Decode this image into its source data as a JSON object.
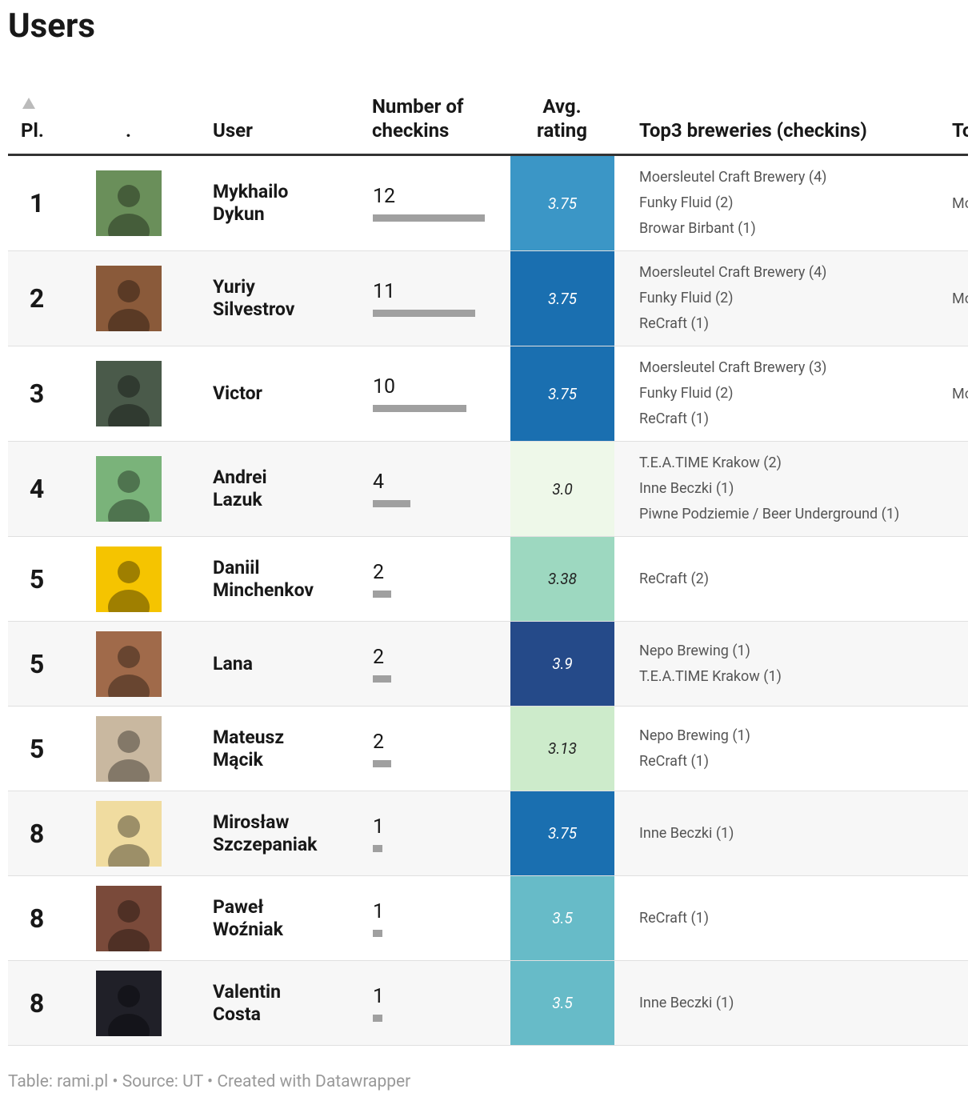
{
  "title": "Users",
  "table": {
    "columns": [
      "Pl.",
      ".",
      "User",
      "Number of checkins",
      "Avg. rating",
      "Top3 breweries (checkins)",
      "To"
    ],
    "bar_color": "#a0a0a0",
    "rows": [
      {
        "place": 1,
        "user": "Mykhailo Dykun",
        "checkins": 12,
        "rating": 3.75,
        "rating_color": "#3b96c6",
        "breweries": [
          "Moersleutel Craft Brewery (4)",
          "Funky Fluid (2)",
          "Browar Birbant (1)"
        ],
        "extra": "Mo"
      },
      {
        "place": 2,
        "user": "Yuriy Silvestrov",
        "checkins": 11,
        "rating": 3.75,
        "rating_color": "#1a6fb0",
        "breweries": [
          "Moersleutel Craft Brewery (4)",
          "Funky Fluid (2)",
          "ReCraft (1)"
        ],
        "extra": "Mo"
      },
      {
        "place": 3,
        "user": "Victor",
        "checkins": 10,
        "rating": 3.75,
        "rating_color": "#1a6fb0",
        "breweries": [
          "Moersleutel Craft Brewery (3)",
          "Funky Fluid (2)",
          "ReCraft (1)"
        ],
        "extra": "Mo"
      },
      {
        "place": 4,
        "user": "Andrei Lazuk",
        "checkins": 4,
        "rating": 3,
        "rating_label": "3.0",
        "rating_color": "#eef8e9",
        "breweries": [
          "T.E.A.TIME Krakow (2)",
          "Inne Beczki (1)",
          "Piwne Podziemie / Beer Underground (1)"
        ]
      },
      {
        "place": 5,
        "user": "Daniil Minchenkov",
        "checkins": 2,
        "rating": 3.38,
        "rating_color": "#9dd8c0",
        "breweries": [
          "ReCraft (2)"
        ]
      },
      {
        "place": 5,
        "user": "Lana",
        "checkins": 2,
        "rating": 3.9,
        "rating_color": "#254a89",
        "breweries": [
          "Nepo Brewing (1)",
          "T.E.A.TIME Krakow (1)"
        ]
      },
      {
        "place": 5,
        "user": "Mateusz Mącik",
        "checkins": 2,
        "rating": 3.13,
        "rating_color": "#cdebcb",
        "breweries": [
          "Nepo Brewing (1)",
          "ReCraft (1)"
        ]
      },
      {
        "place": 8,
        "user": "Mirosław Szczepaniak",
        "checkins": 1,
        "rating": 3.75,
        "rating_color": "#1a6fb0",
        "breweries": [
          "Inne Beczki (1)"
        ]
      },
      {
        "place": 8,
        "user": "Paweł Woźniak",
        "checkins": 1,
        "rating": 3.5,
        "rating_color": "#67bbc8",
        "breweries": [
          "ReCraft (1)"
        ]
      },
      {
        "place": 8,
        "user": "Valentin Costa",
        "checkins": 1,
        "rating": 3.5,
        "rating_color": "#67bbc8",
        "breweries": [
          "Inne Beczki (1)"
        ]
      }
    ]
  },
  "footer": "Table: rami.pl • Source: UT • Created with Datawrapper"
}
